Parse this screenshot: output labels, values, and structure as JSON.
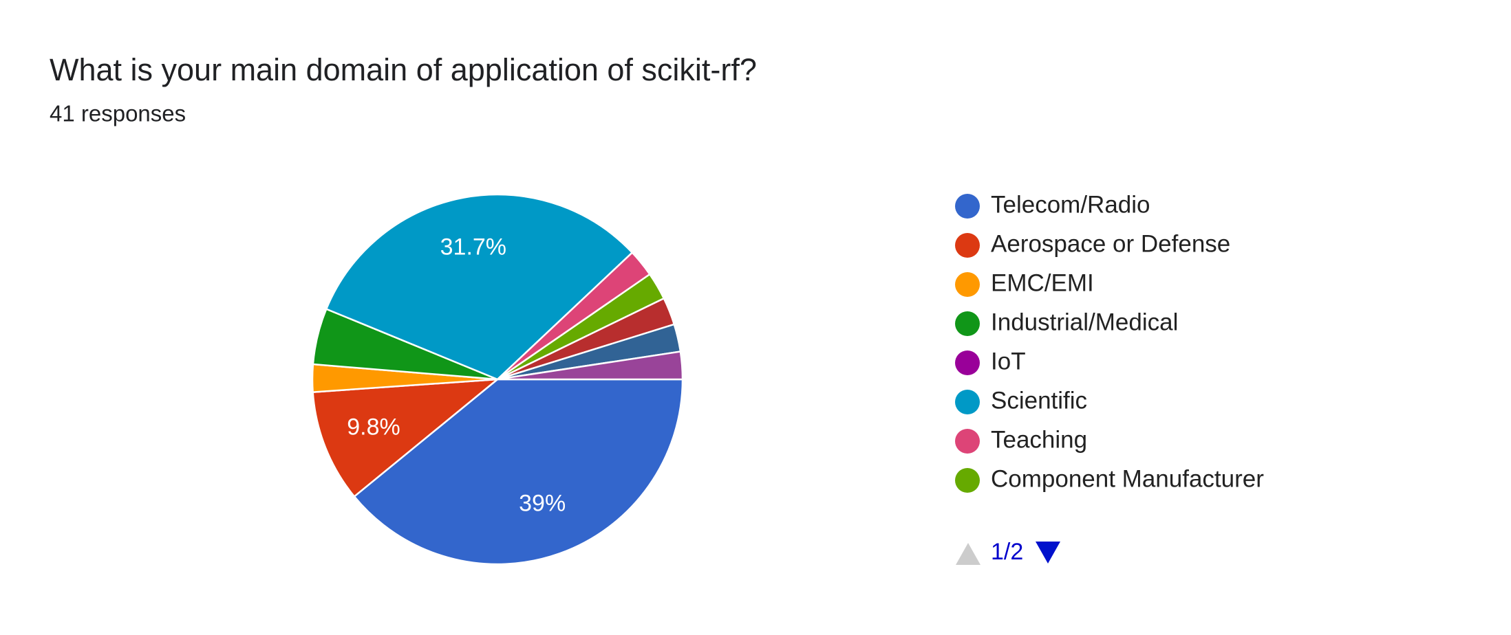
{
  "chart_data": {
    "type": "pie",
    "title": "What is your main domain of application of scikit-rf?",
    "subtitle": "41 responses",
    "categories": [
      "Telecom/Radio",
      "Aerospace or Defense",
      "EMC/EMI",
      "Industrial/Medical",
      "IoT",
      "Scientific",
      "Teaching",
      "Component Manufacturer",
      null,
      null,
      null
    ],
    "values": [
      39,
      9.8,
      2.4,
      4.9,
      0,
      31.7,
      2.4,
      2.4,
      2.4,
      2.4,
      2.4
    ],
    "value_labels": [
      "39%",
      "9.8%",
      null,
      null,
      null,
      "31.7%",
      null,
      null,
      null,
      null,
      null
    ],
    "colors": [
      "#3366cc",
      "#dc3912",
      "#ff9900",
      "#109618",
      "#990099",
      "#0099c6",
      "#dd4477",
      "#66aa00",
      "#b82e2e",
      "#316395",
      "#994499"
    ],
    "legend_page": "1/2"
  }
}
